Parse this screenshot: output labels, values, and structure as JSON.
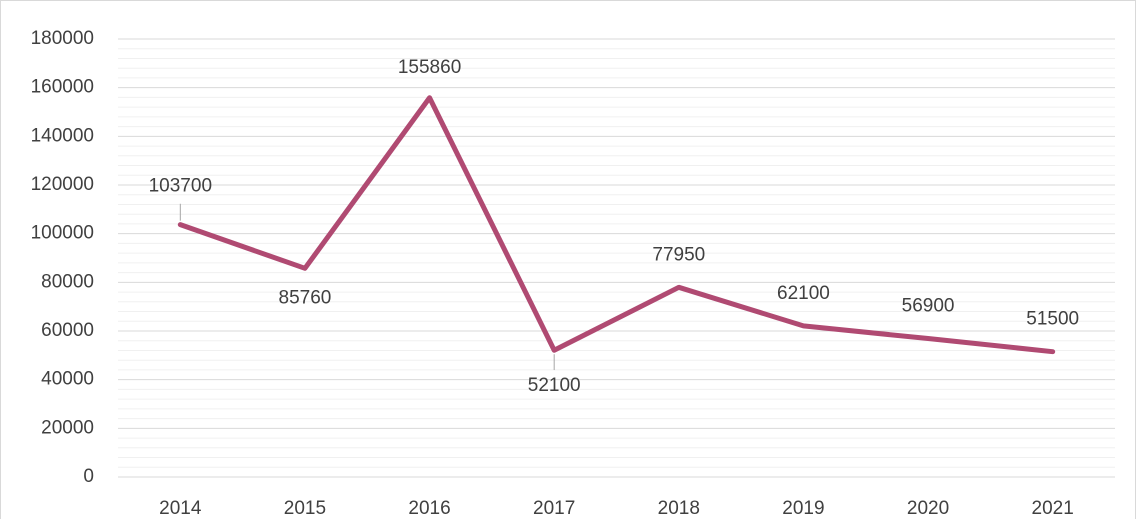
{
  "chart_data": {
    "type": "line",
    "categories": [
      "2014",
      "2015",
      "2016",
      "2017",
      "2018",
      "2019",
      "2020",
      "2021"
    ],
    "values": [
      103700,
      85760,
      155860,
      52100,
      77950,
      62100,
      56900,
      51500
    ],
    "color": "#b04a72",
    "ylim": [
      0,
      180000
    ],
    "yticks": [
      0,
      20000,
      40000,
      60000,
      80000,
      100000,
      120000,
      140000,
      160000,
      180000
    ],
    "grid": true
  }
}
